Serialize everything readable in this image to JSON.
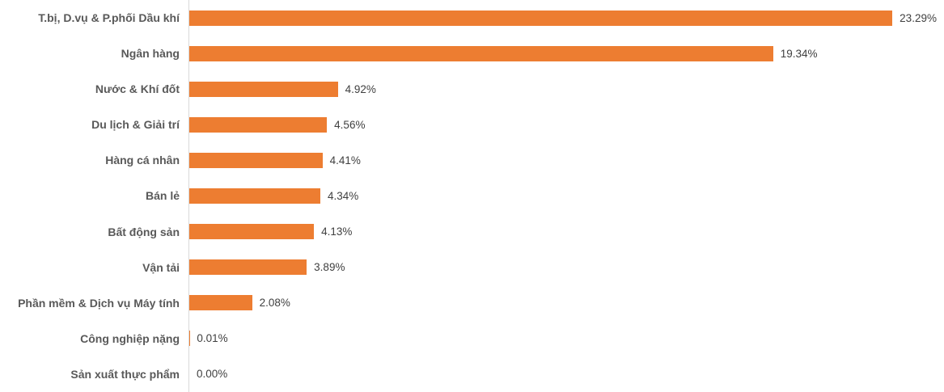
{
  "chart_data": {
    "type": "bar",
    "orientation": "horizontal",
    "title": "",
    "xlabel": "",
    "ylabel": "",
    "xlim": [
      0,
      25
    ],
    "grid": false,
    "legend": false,
    "bar_color": "#ed7d31",
    "axis_line_color": "#d9d9d9",
    "category_label_color": "#595959",
    "value_label_color": "#404040",
    "categories": [
      "T.bị, D.vụ & P.phối Dầu khí",
      "Ngân hàng",
      "Nước & Khí đốt",
      "Du lịch & Giải trí",
      "Hàng cá nhân",
      "Bán lẻ",
      "Bất động sản",
      "Vận tải",
      "Phần mềm & Dịch vụ Máy tính",
      "Công nghiệp nặng",
      "Sản xuất thực phẩm"
    ],
    "values": [
      23.29,
      19.34,
      4.92,
      4.56,
      4.41,
      4.34,
      4.13,
      3.89,
      2.08,
      0.01,
      0.0
    ],
    "value_labels": [
      "23.29%",
      "19.34%",
      "4.92%",
      "4.56%",
      "4.41%",
      "4.34%",
      "4.13%",
      "3.89%",
      "2.08%",
      "0.01%",
      "0.00%"
    ]
  }
}
